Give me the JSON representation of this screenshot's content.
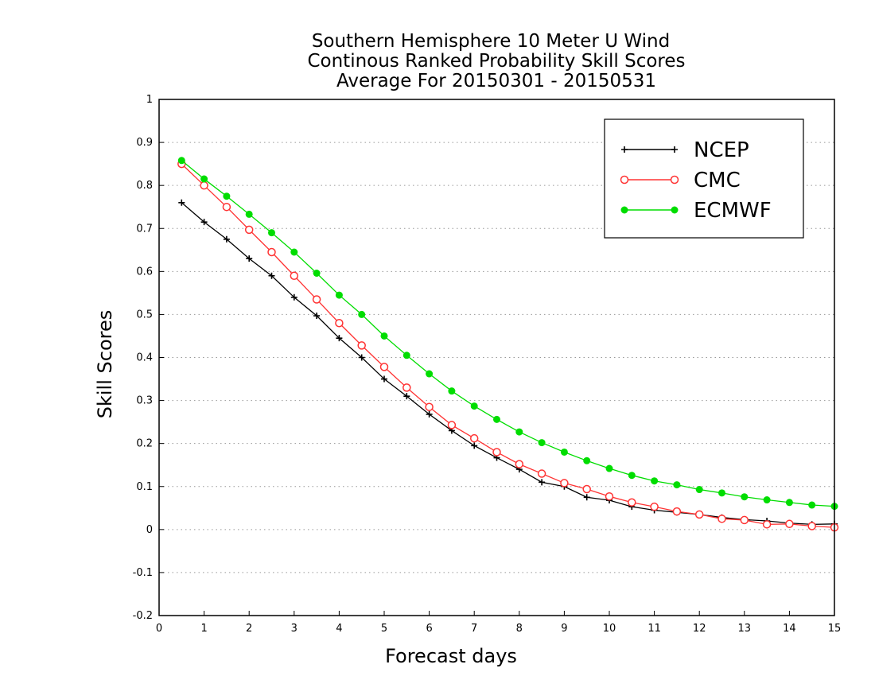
{
  "chart_data": {
    "type": "line",
    "title_lines": [
      "Southern Hemisphere 10 Meter U Wind",
      "Continous Ranked Probability Skill Scores",
      "Average For 20150301 - 20150531"
    ],
    "xlabel": "Forecast days",
    "ylabel": "Skill Scores",
    "xlim": [
      0,
      15
    ],
    "ylim": [
      -0.2,
      1
    ],
    "x_ticks": [
      "0",
      "1",
      "2",
      "3",
      "4",
      "5",
      "6",
      "7",
      "8",
      "9",
      "10",
      "11",
      "12",
      "13",
      "14",
      "15"
    ],
    "y_ticks": [
      "1",
      "0.9",
      "0.8",
      "0.7",
      "0.6",
      "0.5",
      "0.4",
      "0.3",
      "0.2",
      "0.1",
      "0",
      "-0.1",
      "-0.2"
    ],
    "grid": "horizontal dotted",
    "legend_position": "top-right",
    "x": [
      0.5,
      1,
      1.5,
      2,
      2.5,
      3,
      3.5,
      4,
      4.5,
      5,
      5.5,
      6,
      6.5,
      7,
      7.5,
      8,
      8.5,
      9,
      9.5,
      10,
      10.5,
      11,
      11.5,
      12,
      12.5,
      13,
      13.5,
      14,
      14.5,
      15
    ],
    "series": [
      {
        "name": "NCEP",
        "color": "#000000",
        "marker": "plus",
        "values": [
          0.76,
          0.715,
          0.675,
          0.63,
          0.59,
          0.54,
          0.497,
          0.445,
          0.4,
          0.35,
          0.31,
          0.268,
          0.23,
          0.195,
          0.167,
          0.14,
          0.11,
          0.1,
          0.075,
          0.068,
          0.053,
          0.045,
          0.04,
          0.035,
          0.028,
          0.023,
          0.02,
          0.015,
          0.012,
          0.013
        ]
      },
      {
        "name": "CMC",
        "color": "#ff3333",
        "marker": "open-circle",
        "values": [
          0.85,
          0.8,
          0.75,
          0.697,
          0.645,
          0.59,
          0.535,
          0.48,
          0.428,
          0.378,
          0.33,
          0.285,
          0.243,
          0.212,
          0.18,
          0.152,
          0.13,
          0.108,
          0.094,
          0.077,
          0.063,
          0.053,
          0.042,
          0.035,
          0.025,
          0.022,
          0.012,
          0.013,
          0.008,
          0.005
        ]
      },
      {
        "name": "ECMWF",
        "color": "#00dd00",
        "marker": "filled-circle",
        "values": [
          0.858,
          0.815,
          0.775,
          0.733,
          0.69,
          0.645,
          0.596,
          0.545,
          0.5,
          0.45,
          0.405,
          0.362,
          0.322,
          0.287,
          0.256,
          0.227,
          0.202,
          0.18,
          0.16,
          0.142,
          0.126,
          0.113,
          0.104,
          0.093,
          0.085,
          0.076,
          0.069,
          0.063,
          0.057,
          0.054
        ]
      }
    ]
  }
}
